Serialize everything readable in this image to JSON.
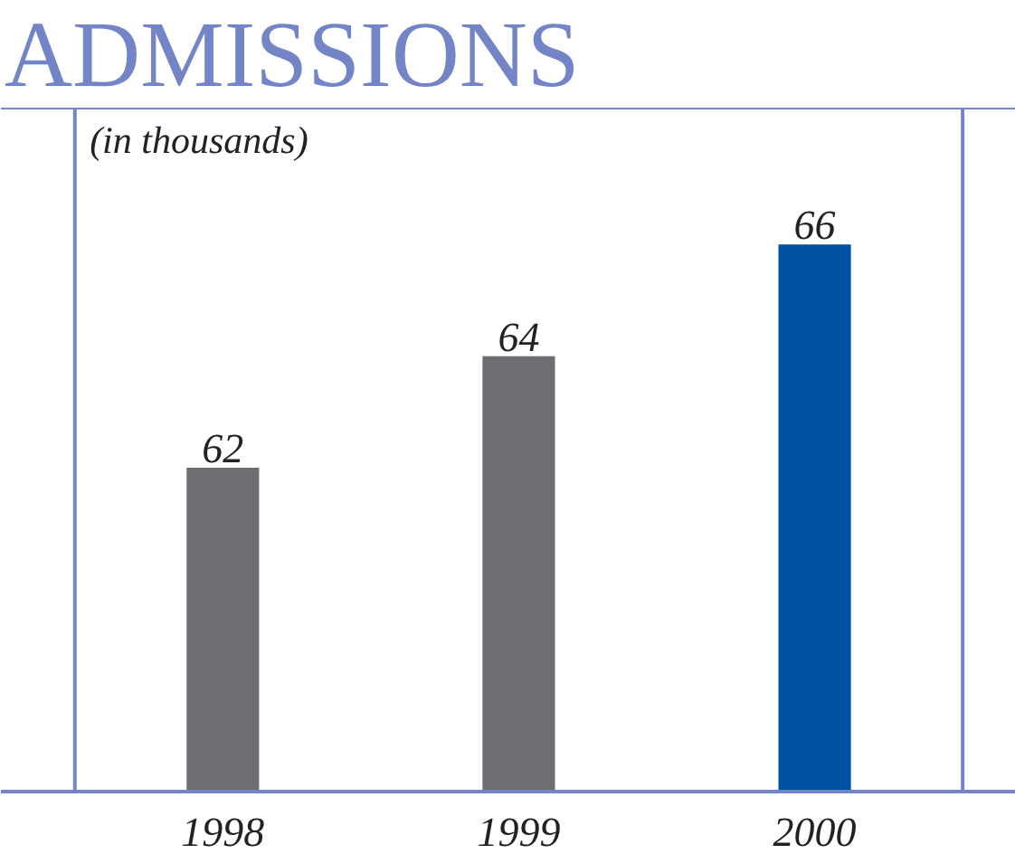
{
  "chart_data": {
    "type": "bar",
    "title": "ADMISSIONS",
    "subtitle": "(in thousands)",
    "categories": [
      "1998",
      "1999",
      "2000"
    ],
    "values": [
      62,
      64,
      66
    ],
    "colors": [
      "#6d6e71",
      "#6d6e71",
      "#0052a0"
    ],
    "ylim": [
      56.2,
      68.45
    ],
    "data_labels": true
  }
}
